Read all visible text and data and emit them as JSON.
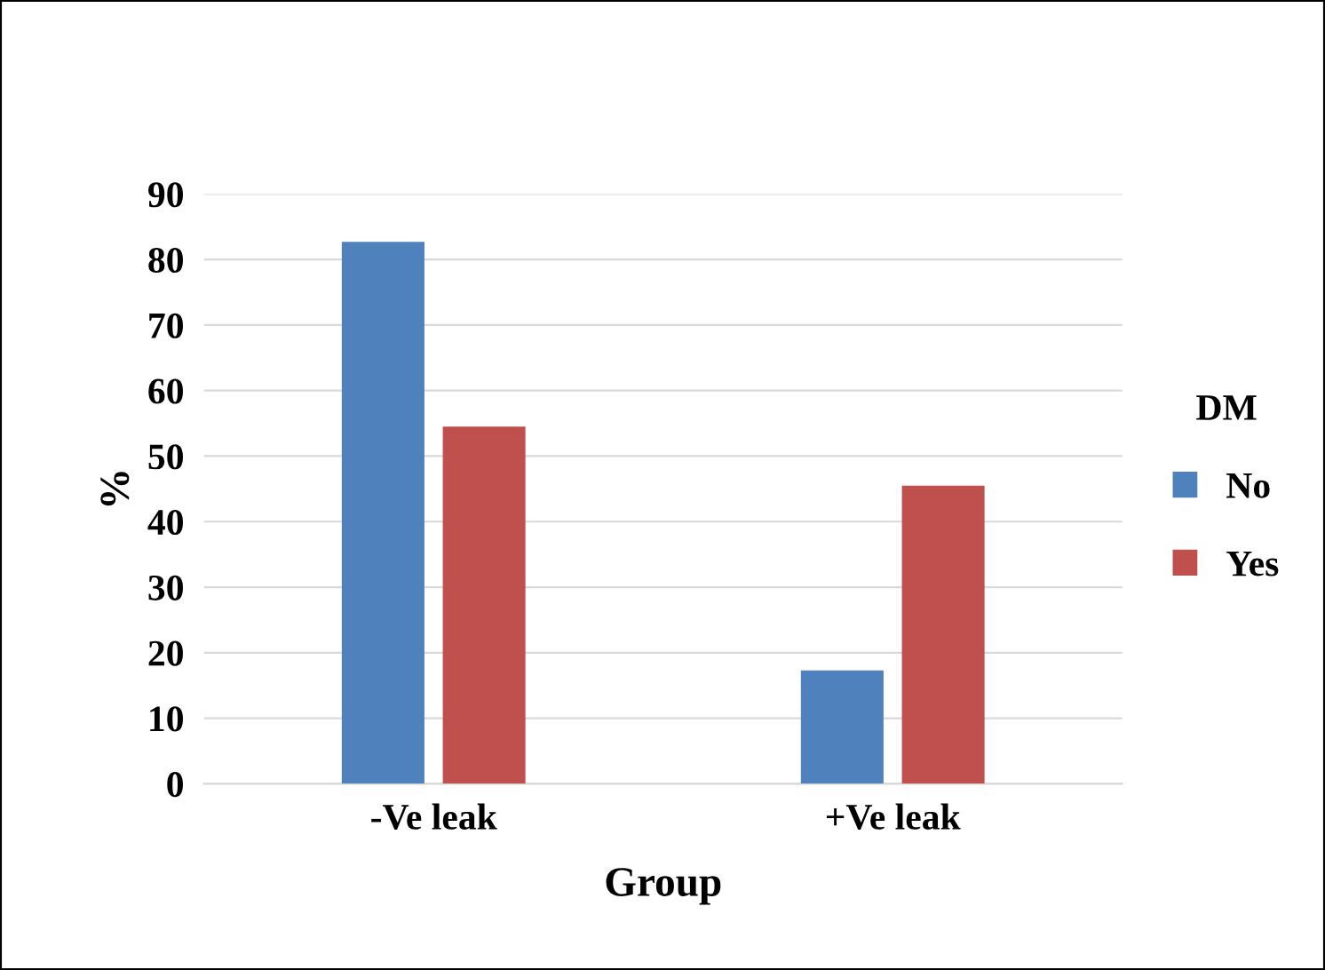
{
  "chart_data": {
    "type": "bar",
    "xlabel": "Group",
    "ylabel": "%",
    "legend_title": "DM",
    "categories": [
      "-Ve leak",
      "+Ve leak"
    ],
    "series": [
      {
        "name": "No",
        "color": "#4f81bd",
        "values": [
          82.7,
          17.3
        ]
      },
      {
        "name": "Yes",
        "color": "#c0504d",
        "values": [
          54.5,
          45.5
        ]
      }
    ],
    "ylim": [
      0,
      90
    ],
    "yticks": [
      0,
      10,
      20,
      30,
      40,
      50,
      60,
      70,
      80,
      90
    ],
    "grid": "y",
    "legend": "right"
  }
}
